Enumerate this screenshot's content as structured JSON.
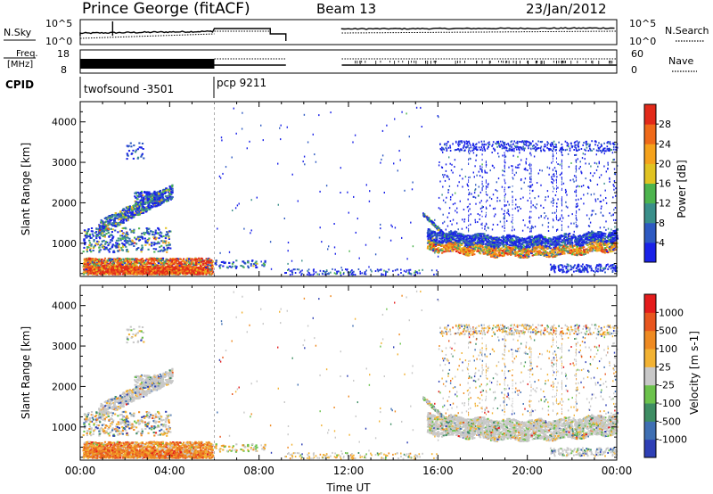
{
  "header": {
    "station": "Prince George (fitACF)",
    "beam": "Beam 13",
    "date": "23/Jan/2012"
  },
  "top_panels": {
    "nsky_label": "N.Sky",
    "nsky_ticks": [
      "10^5",
      "10^0"
    ],
    "nsearch_label": "N.Search",
    "nsearch_ticks": [
      "10^5",
      "10^0"
    ],
    "freq_label_1": "Freq.",
    "freq_label_2": "[MHz]",
    "freq_ticks": [
      "18",
      "8"
    ],
    "nave_label": "Nave",
    "nave_ticks": [
      "60",
      "0"
    ],
    "cpid_label": "CPID",
    "cpid_segments": [
      {
        "label": "twofsound -3501",
        "start_h": 0,
        "end_h": 6
      },
      {
        "label": "pcp 9211",
        "start_h": 6,
        "end_h": 24
      }
    ]
  },
  "chart_data": [
    {
      "type": "heatmap",
      "name": "power",
      "xlabel": "",
      "ylabel": "Slant Range [km]",
      "xlim": [
        0,
        24
      ],
      "ylim": [
        180,
        4500
      ],
      "yticks": [
        "1000",
        "2000",
        "3000",
        "4000"
      ],
      "colorbar_label": "Power [dB]",
      "colorbar_ticks": [
        "28",
        "24",
        "20",
        "16",
        "12",
        "8",
        "4"
      ],
      "colorbar_colors": [
        "#1a22e8",
        "#2e5ac2",
        "#3a8f8a",
        "#4db44e",
        "#e1c322",
        "#f5a21c",
        "#ef6a1a",
        "#e22a1a"
      ]
    },
    {
      "type": "heatmap",
      "name": "velocity",
      "xlabel": "Time UT",
      "ylabel": "Slant Range [km]",
      "xlim": [
        0,
        24
      ],
      "ylim": [
        180,
        4500
      ],
      "yticks": [
        "1000",
        "2000",
        "3000",
        "4000"
      ],
      "xticks": [
        "00:00",
        "04:00",
        "08:00",
        "12:00",
        "16:00",
        "20:00",
        "00:00"
      ],
      "colorbar_label": "Velocity [m s-1]",
      "colorbar_ticks": [
        "1000",
        "500",
        "100",
        "25",
        "-25",
        "-100",
        "-500",
        "-1000"
      ],
      "colorbar_colors": [
        "#2e3fb5",
        "#3f6fb3",
        "#3e8d63",
        "#6cc24c",
        "#c8c8c8",
        "#f2b233",
        "#ee8a22",
        "#e8561f",
        "#e41c1c"
      ]
    }
  ]
}
